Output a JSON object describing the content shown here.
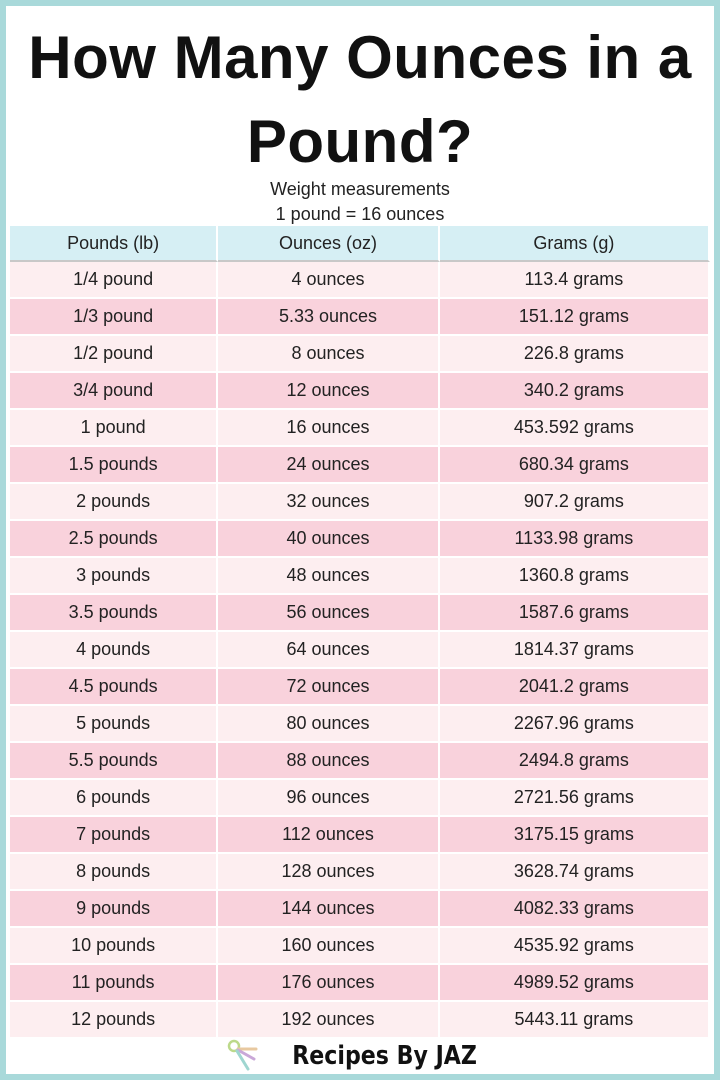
{
  "title": "How Many Ounces in a Pound?",
  "subtitle": "Weight measurements",
  "equivalence": "1 pound =  16 ounces",
  "table": {
    "headers": [
      "Pounds (lb)",
      "Ounces (oz)",
      "Grams (g)"
    ],
    "rows": [
      [
        "1/4 pound",
        "4 ounces",
        "113.4 grams"
      ],
      [
        "1/3 pound",
        "5.33 ounces",
        "151.12 grams"
      ],
      [
        "1/2 pound",
        "8 ounces",
        "226.8 grams"
      ],
      [
        "3/4 pound",
        "12 ounces",
        "340.2 grams"
      ],
      [
        "1 pound",
        "16 ounces",
        "453.592 grams"
      ],
      [
        "1.5 pounds",
        "24 ounces",
        "680.34 grams"
      ],
      [
        "2 pounds",
        "32 ounces",
        "907.2 grams"
      ],
      [
        "2.5 pounds",
        "40 ounces",
        "1133.98 grams"
      ],
      [
        "3 pounds",
        "48 ounces",
        "1360.8 grams"
      ],
      [
        "3.5 pounds",
        "56 ounces",
        "1587.6 grams"
      ],
      [
        "4 pounds",
        "64 ounces",
        "1814.37 grams"
      ],
      [
        "4.5 pounds",
        "72 ounces",
        "2041.2 grams"
      ],
      [
        "5 pounds",
        "80 ounces",
        "2267.96 grams"
      ],
      [
        "5.5 pounds",
        "88 ounces",
        "2494.8 grams"
      ],
      [
        "6 pounds",
        "96 ounces",
        "2721.56 grams"
      ],
      [
        "7 pounds",
        "112 ounces",
        "3175.15 grams"
      ],
      [
        "8 pounds",
        "128 ounces",
        "3628.74 grams"
      ],
      [
        "9 pounds",
        "144 ounces",
        "4082.33 grams"
      ],
      [
        "10 pounds",
        "160 ounces",
        "4535.92 grams"
      ],
      [
        "11 pounds",
        "176 ounces",
        "4989.52 grams"
      ],
      [
        "12 pounds",
        "192 ounces",
        "5443.11 grams"
      ]
    ]
  },
  "footer": {
    "brand": "Recipes By JAZ",
    "logo_icon": "measuring-spoons-icon"
  },
  "colors": {
    "border": "#a9d9da",
    "header_bg": "#d6eff4",
    "row_light": "#fdeef0",
    "row_pink": "#f9d2dc"
  }
}
